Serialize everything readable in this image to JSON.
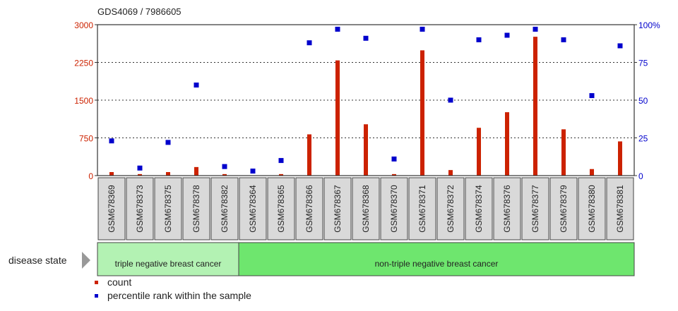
{
  "title": "GDS4069 / 7986605",
  "chart_data": {
    "type": "bar",
    "title": "GDS4069 / 7986605",
    "categories": [
      "GSM678369",
      "GSM678373",
      "GSM678375",
      "GSM678378",
      "GSM678382",
      "GSM678364",
      "GSM678365",
      "GSM678366",
      "GSM678367",
      "GSM678368",
      "GSM678370",
      "GSM678371",
      "GSM678372",
      "GSM678374",
      "GSM678376",
      "GSM678377",
      "GSM678379",
      "GSM678380",
      "GSM678381"
    ],
    "series": [
      {
        "name": "count",
        "type": "bar",
        "axis": "left",
        "color": "#cc2200",
        "values": [
          70,
          30,
          70,
          170,
          30,
          5,
          30,
          820,
          2290,
          1020,
          30,
          2490,
          110,
          950,
          1260,
          2760,
          920,
          130,
          680
        ]
      },
      {
        "name": "percentile rank within the sample",
        "type": "scatter",
        "axis": "right",
        "color": "#0000cc",
        "values": [
          23,
          5,
          22,
          60,
          6,
          3,
          10,
          88,
          97,
          91,
          11,
          97,
          50,
          90,
          93,
          97,
          90,
          53,
          86
        ]
      }
    ],
    "left_axis": {
      "ylim": [
        0,
        3000
      ],
      "ticks": [
        "0",
        "750",
        "1500",
        "2250",
        "3000"
      ],
      "color": "#cc2200"
    },
    "right_axis": {
      "ylim": [
        0,
        100
      ],
      "ticks": [
        "0",
        "25",
        "50",
        "75",
        "100%"
      ],
      "color": "#0000cc"
    },
    "grid": true,
    "legend_placement": "bottom-left",
    "groups": {
      "label": "disease state",
      "items": [
        {
          "name": "triple negative breast cancer",
          "count": 5,
          "color": "#b3f2b3"
        },
        {
          "name": "non-triple negative breast cancer",
          "count": 14,
          "color": "#6ee66e"
        }
      ]
    }
  }
}
